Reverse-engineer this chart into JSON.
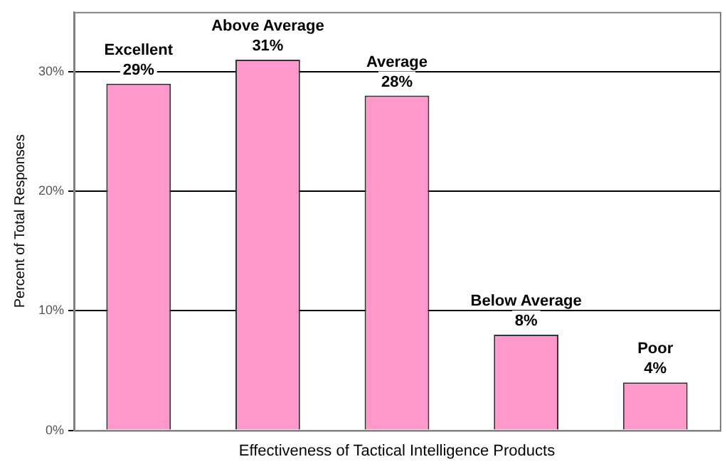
{
  "chart_data": {
    "type": "bar",
    "xlabel": "Effectiveness of Tactical Intelligence Products",
    "ylabel": "Percent of Total Responses",
    "categories": [
      "Excellent",
      "Above Average",
      "Average",
      "Below Average",
      "Poor"
    ],
    "values": [
      29,
      31,
      28,
      8,
      4
    ],
    "value_labels": [
      "29%",
      "31%",
      "28%",
      "8%",
      "4%"
    ],
    "color": "#ff99cc",
    "ylim": [
      0,
      35
    ],
    "yticks": [
      {
        "value": 0,
        "label": "0%"
      },
      {
        "value": 10,
        "label": "10%"
      },
      {
        "value": 20,
        "label": "20%"
      },
      {
        "value": 30,
        "label": "30%"
      }
    ],
    "grid": "y",
    "legend": false,
    "tick_labels": "y"
  }
}
